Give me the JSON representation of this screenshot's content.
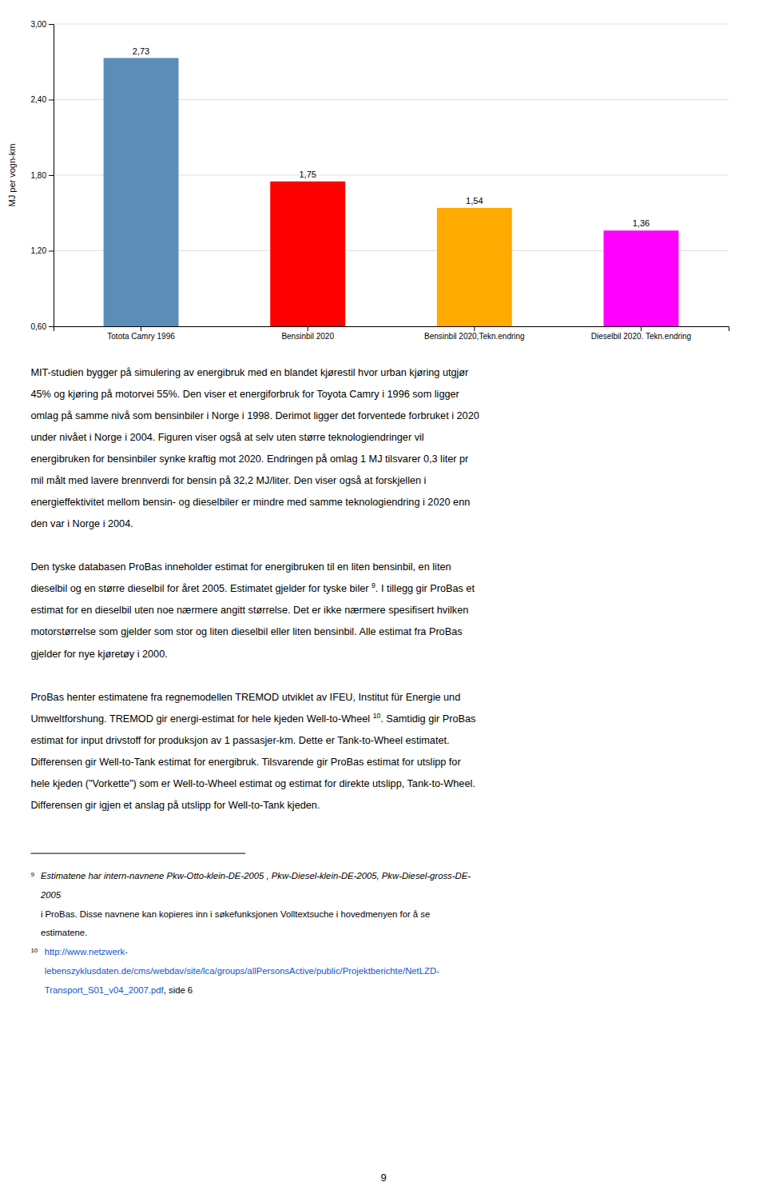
{
  "chart_data": {
    "type": "bar",
    "categories": [
      "Totota Camry 1996",
      "Bensinbil 2020",
      "Bensinbil 2020,Tekn.endring",
      "Dieselbil 2020. Tekn.endring"
    ],
    "values": [
      2.73,
      1.75,
      1.54,
      1.36
    ],
    "value_labels": [
      "2,73",
      "1,75",
      "1,54",
      "1,36"
    ],
    "data_labels": true,
    "colors": [
      "#5b8db8",
      "#ff0000",
      "#ffaa00",
      "#ff00ff"
    ],
    "ylabel": "MJ per vogn-km",
    "ylim": [
      0.6,
      3.0
    ],
    "yticks": [
      {
        "value": 0.6,
        "label": "0,60"
      },
      {
        "value": 1.2,
        "label": "1,20"
      },
      {
        "value": 1.8,
        "label": "1,80"
      },
      {
        "value": 2.4,
        "label": "2,40"
      },
      {
        "value": 3.0,
        "label": "3,00"
      }
    ],
    "grid": true
  },
  "body_text_1": [
    "MIT-studien bygger på simulering av energibruk med en blandet kjørestil hvor urban kjøring utgjør",
    "45% og kjøring på motorvei 55%. Den viser et energiforbruk for Toyota Camry i 1996 som ligger",
    "omlag på samme nivå som bensinbiler i Norge i 1998. Derimot ligger det forventede forbruket i 2020",
    "under nivået i Norge i 2004. Figuren viser også at selv uten større teknologiendringer vil",
    "energibruken for bensinbiler synke kraftig mot 2020. Endringen på omlag 1 MJ tilsvarer 0,3 liter pr",
    "mil målt med lavere brennverdi for bensin på 32,2 MJ/liter.  Den viser også at forskjellen i",
    "energieffektivitet mellom bensin- og dieselbiler er mindre med samme teknologiendring i 2020 enn",
    "den var i Norge i 2004."
  ],
  "body_text_2a": "Den tyske databasen ProBas inneholder estimat for energibruken til en liten bensinbil, en liten",
  "body_text_2b": "dieselbil og en større dieselbil for året 2005. Estimatet gjelder for tyske biler ",
  "body_text_2_super": "9",
  "body_text_2c": ". I tillegg gir ProBas et",
  "body_text_2d": [
    "estimat for en dieselbil uten noe nærmere angitt størrelse. Det er ikke nærmere spesifisert hvilken",
    "motorstørrelse som gjelder som stor og liten dieselbil eller liten bensinbil. Alle estimat fra ProBas",
    "gjelder for nye kjøretøy i 2000."
  ],
  "body_text_3a": "ProBas henter estimatene fra regnemodellen TREMOD utviklet av IFEU, Institut für Energie und",
  "body_text_3b": "Umweltforshung. TREMOD gir energi-estimat for hele kjeden Well-to-Wheel ",
  "body_text_3_super": "10",
  "body_text_3c": ". Samtidig gir ProBas",
  "body_text_3d": [
    "estimat for input drivstoff for produksjon av 1 passasjer-km. Dette er Tank-to-Wheel estimatet.",
    "Differensen gir Well-to-Tank estimat for energibruk. Tilsvarende gir ProBas estimat for utslipp for",
    "hele kjeden (\"Vorkette\") som er Well-to-Wheel estimat og estimat for direkte utslipp, Tank-to-Wheel.",
    "Differensen gir igjen et anslag på utslipp for Well-to-Tank kjeden."
  ],
  "footnote_9_marker": "9",
  "footnote_9_italic": [
    "Estimatene har intern-navnene Pkw-Otto-klein-DE-2005 , Pkw-Diesel-klein-DE-2005, Pkw-Diesel-gross-DE-",
    "2005"
  ],
  "footnote_9_rest": [
    " i ProBas. Disse navnene kan kopieres inn i søkefunksjonen Volltextsuche i hovedmenyen for å se",
    "estimatene."
  ],
  "footnote_10_marker": "10",
  "footnote_10_link1": "http://www.netzwerk-",
  "footnote_10_link2": "lebenszyklusdaten.de/cms/webdav/site/lca/groups/allPersonsActive/public/Projektberichte/NetLZD-",
  "footnote_10_link3": "Transport_S01_v04_2007.pdf",
  "footnote_10_rest": ", side 6",
  "page_number": "9"
}
